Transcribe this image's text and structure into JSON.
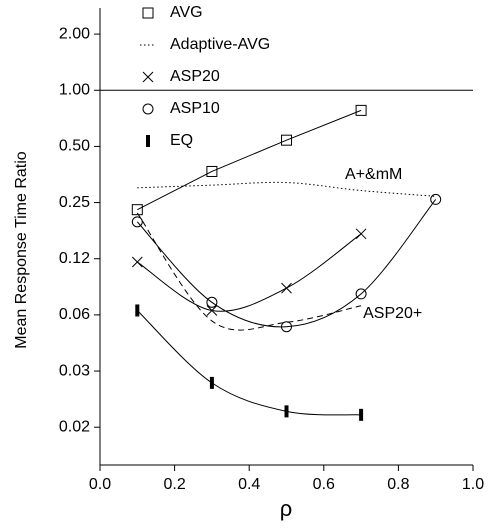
{
  "chart_data": {
    "type": "line",
    "y_label": "Mean Response Time Ratio",
    "x_label": "ρ",
    "log_y": true,
    "grid": false,
    "legend": "top-left",
    "xlim": [
      0,
      1
    ],
    "ylim": [
      0.0098,
      2.76
    ],
    "xticks": [
      {
        "value": 0,
        "label": "0.0"
      },
      {
        "value": 0.2,
        "label": "0.2"
      },
      {
        "value": 0.4,
        "label": "0.4"
      },
      {
        "value": 0.6,
        "label": "0.6"
      },
      {
        "value": 0.8,
        "label": "0.8"
      },
      {
        "value": 1,
        "label": "1.0"
      }
    ],
    "yticks": [
      {
        "value": 0.015625,
        "label": "0.02"
      },
      {
        "value": 0.03125,
        "label": "0.03"
      },
      {
        "value": 0.0625,
        "label": "0.06"
      },
      {
        "value": 0.125,
        "label": "0.12"
      },
      {
        "value": 0.25,
        "label": "0.25"
      },
      {
        "value": 0.5,
        "label": "0.50"
      },
      {
        "value": 1,
        "label": "1.00"
      },
      {
        "value": 2,
        "label": "2.00"
      }
    ],
    "reference_line": 1,
    "annotation": "A+&mM",
    "series": [
      {
        "name": "AVG",
        "color": "#000000",
        "marker": "square",
        "dash": "solid",
        "smooth": false,
        "x": [
          0.1,
          0.3,
          0.5,
          0.7
        ],
        "values": [
          0.229,
          0.367,
          0.54,
          0.78
        ]
      },
      {
        "name": "Adaptive-AVG",
        "color": "#000000",
        "marker": "none",
        "dash": "dotted",
        "smooth": true,
        "x": [
          0.1,
          0.3,
          0.5,
          0.7,
          0.9
        ],
        "values": [
          0.3,
          0.31,
          0.32,
          0.29,
          0.27
        ]
      },
      {
        "name": "ASP20",
        "color": "#000000",
        "marker": "x",
        "dash": "solid",
        "smooth": true,
        "x": [
          0.1,
          0.3,
          0.5,
          0.7
        ],
        "values": [
          0.12,
          0.066,
          0.087,
          0.17
        ]
      },
      {
        "name": "ASP10",
        "color": "#000000",
        "marker": "circle",
        "dash": "solid",
        "smooth": true,
        "x": [
          0.1,
          0.3,
          0.5,
          0.7,
          0.9
        ],
        "values": [
          0.197,
          0.073,
          0.054,
          0.081,
          0.26
        ]
      },
      {
        "name": "EQ",
        "color": "#000000",
        "marker": "bar",
        "dash": "solid",
        "smooth": true,
        "x": [
          0.1,
          0.3,
          0.5,
          0.7
        ],
        "values": [
          0.066,
          0.027,
          0.019,
          0.0182
        ]
      },
      {
        "name": "ASP20+",
        "color": "#000000",
        "marker": "none",
        "dash": "dashed",
        "smooth": true,
        "in_legend": false,
        "x": [
          0.1,
          0.3,
          0.5,
          0.7
        ],
        "values": [
          0.22,
          0.058,
          0.057,
          0.07
        ]
      }
    ]
  }
}
